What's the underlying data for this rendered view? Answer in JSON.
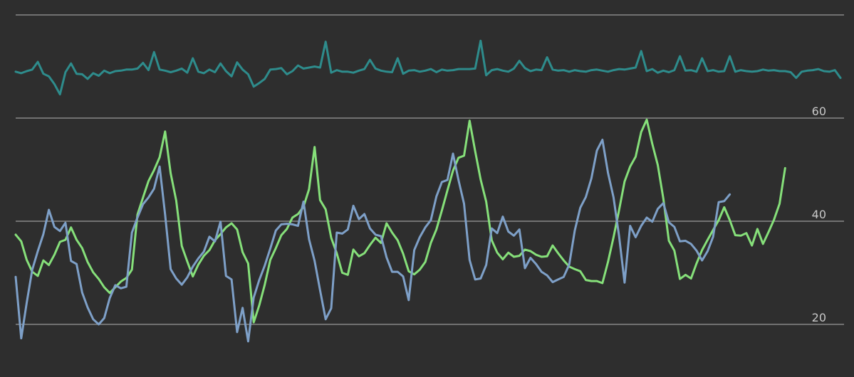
{
  "chart_data": {
    "type": "line",
    "ylim": [
      16,
      78
    ],
    "y_ticks": [
      {
        "value": 20,
        "label": "20"
      },
      {
        "value": 40,
        "label": "40"
      },
      {
        "value": 60,
        "label": "60"
      },
      {
        "value": 80,
        "label": ""
      }
    ],
    "grid": true,
    "legend": "none",
    "x_count": 150,
    "series": [
      {
        "color": "#2e8c8c",
        "values": [
          69.0,
          68.7,
          69.1,
          69.4,
          70.9,
          68.6,
          68.1,
          66.6,
          64.6,
          68.9,
          70.6,
          68.6,
          68.5,
          67.6,
          68.7,
          68.2,
          69.2,
          68.7,
          69.1,
          69.2,
          69.4,
          69.4,
          69.6,
          70.7,
          69.3,
          72.8,
          69.4,
          69.2,
          68.9,
          69.2,
          69.6,
          68.8,
          71.6,
          69.0,
          68.7,
          69.4,
          68.9,
          70.6,
          69.1,
          68.1,
          70.8,
          69.4,
          68.5,
          66.1,
          66.8,
          67.6,
          69.4,
          69.5,
          69.7,
          68.5,
          69.1,
          70.2,
          69.6,
          69.8,
          70.0,
          69.8,
          74.8,
          68.8,
          69.3,
          69.0,
          69.0,
          68.8,
          69.2,
          69.5,
          71.3,
          69.6,
          69.2,
          69.0,
          68.9,
          71.6,
          68.6,
          69.2,
          69.3,
          69.0,
          69.2,
          69.5,
          68.9,
          69.4,
          69.2,
          69.3,
          69.5,
          69.5,
          69.5,
          69.6,
          75.0,
          68.3,
          69.3,
          69.5,
          69.2,
          69.0,
          69.6,
          71.1,
          69.7,
          69.1,
          69.4,
          69.3,
          71.8,
          69.4,
          69.2,
          69.3,
          69.0,
          69.3,
          69.1,
          69.0,
          69.3,
          69.4,
          69.2,
          69.0,
          69.3,
          69.5,
          69.4,
          69.6,
          69.8,
          73.0,
          69.1,
          69.5,
          68.8,
          69.2,
          68.9,
          69.3,
          72.0,
          69.2,
          69.3,
          69.0,
          71.6,
          69.1,
          69.3,
          69.0,
          69.1,
          72.0,
          69.0,
          69.3,
          69.1,
          69.0,
          69.1,
          69.4,
          69.2,
          69.3,
          69.1,
          69.1,
          68.9,
          67.8,
          69.0,
          69.2,
          69.3,
          69.5,
          69.1,
          69.0,
          69.3,
          67.8
        ]
      },
      {
        "color": "#86e07a",
        "values": [
          37.4,
          36.1,
          32.5,
          30.2,
          29.4,
          32.4,
          31.5,
          33.5,
          36.0,
          36.4,
          38.8,
          36.4,
          34.8,
          32.1,
          30.1,
          28.8,
          27.2,
          26.1,
          27.2,
          28.3,
          29.0,
          30.6,
          41.3,
          44.6,
          47.8,
          49.9,
          52.4,
          57.4,
          49.3,
          44.0,
          35.2,
          32.2,
          29.3,
          31.6,
          33.3,
          34.4,
          36.3,
          37.5,
          38.8,
          39.6,
          38.4,
          34.0,
          31.8,
          20.4,
          23.7,
          27.7,
          32.5,
          34.8,
          37.3,
          38.5,
          40.7,
          41.4,
          42.8,
          46.2,
          54.4,
          44.1,
          42.3,
          36.8,
          33.8,
          30.0,
          29.6,
          34.5,
          33.2,
          33.8,
          35.4,
          36.8,
          35.8,
          39.6,
          37.8,
          36.3,
          33.7,
          30.3,
          29.7,
          30.6,
          32.1,
          35.8,
          38.4,
          42.1,
          46.0,
          49.8,
          52.3,
          52.7,
          59.5,
          53.6,
          48.1,
          43.8,
          36.3,
          33.9,
          32.6,
          33.9,
          33.1,
          33.3,
          34.5,
          34.2,
          33.5,
          33.1,
          33.2,
          35.3,
          33.8,
          32.4,
          31.2,
          30.7,
          30.3,
          28.6,
          28.4,
          28.4,
          28.0,
          32.1,
          36.9,
          42.1,
          47.7,
          50.6,
          52.5,
          57.3,
          59.7,
          55.0,
          50.9,
          44.4,
          36.2,
          34.3,
          28.8,
          29.6,
          28.9,
          31.8,
          34.4,
          36.4,
          38.3,
          40.2,
          42.7,
          40.2,
          37.3,
          37.2,
          37.7,
          35.3,
          38.5,
          35.6,
          37.9,
          40.3,
          43.4,
          50.3
        ]
      },
      {
        "color": "#7ea0c8",
        "values": [
          29.2,
          17.3,
          24.2,
          30.6,
          34.2,
          37.5,
          42.2,
          38.9,
          38.1,
          39.7,
          32.3,
          31.7,
          26.2,
          23.3,
          21.0,
          20.0,
          21.2,
          25.1,
          27.6,
          27.0,
          27.3,
          37.8,
          40.7,
          43.3,
          44.6,
          46.3,
          50.6,
          41.3,
          30.7,
          28.9,
          27.7,
          29.1,
          31.2,
          32.8,
          34.1,
          37.0,
          36.1,
          39.9,
          29.4,
          28.7,
          18.5,
          23.2,
          16.7,
          25.2,
          28.6,
          31.4,
          34.7,
          38.2,
          39.4,
          39.5,
          39.4,
          39.1,
          43.8,
          36.5,
          32.3,
          26.6,
          21.0,
          23.1,
          37.8,
          37.6,
          38.4,
          43.0,
          40.4,
          41.4,
          38.6,
          37.4,
          37.1,
          33.0,
          30.2,
          30.2,
          29.3,
          24.7,
          34.4,
          36.9,
          38.8,
          40.2,
          44.8,
          47.6,
          48.0,
          53.1,
          48.0,
          43.4,
          32.5,
          28.7,
          28.9,
          31.5,
          38.6,
          37.7,
          40.9,
          38.0,
          37.2,
          38.4,
          30.9,
          32.9,
          31.7,
          30.2,
          29.5,
          28.2,
          28.7,
          29.2,
          31.6,
          38.2,
          42.6,
          44.7,
          48.3,
          53.7,
          55.8,
          49.4,
          44.6,
          37.2,
          28.1,
          39.1,
          36.9,
          39.1,
          40.7,
          39.9,
          42.4,
          43.5,
          39.8,
          38.9,
          36.1,
          36.2,
          35.6,
          34.3,
          32.4,
          34.2,
          37.0,
          43.7,
          43.9,
          45.2
        ]
      }
    ]
  }
}
